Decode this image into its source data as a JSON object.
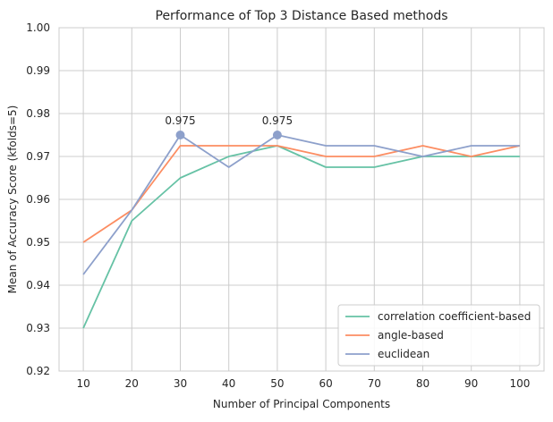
{
  "chart_data": {
    "type": "line",
    "title": "Performance of Top 3 Distance Based methods",
    "xlabel": "Number of Principal Components",
    "ylabel": "Mean of Accuracy Score (kfolds=5)",
    "x": [
      10,
      20,
      30,
      40,
      50,
      60,
      70,
      80,
      90,
      100
    ],
    "xlim": [
      5,
      105
    ],
    "ylim": [
      0.92,
      1.0
    ],
    "xticks": [
      "10",
      "20",
      "30",
      "40",
      "50",
      "60",
      "70",
      "80",
      "90",
      "100"
    ],
    "yticks": [
      "0.92",
      "0.93",
      "0.94",
      "0.95",
      "0.96",
      "0.97",
      "0.98",
      "0.99",
      "1.00"
    ],
    "grid": true,
    "legend_position": "bottom-right",
    "series": [
      {
        "name": "correlation coefficient-based",
        "color": "#66c2a5",
        "values": [
          0.93,
          0.955,
          0.965,
          0.97,
          0.9725,
          0.9675,
          0.9675,
          0.97,
          0.97,
          0.97
        ]
      },
      {
        "name": "angle-based",
        "color": "#fc8d62",
        "values": [
          0.95,
          0.9575,
          0.9725,
          0.9725,
          0.9725,
          0.97,
          0.97,
          0.9725,
          0.97,
          0.9725
        ]
      },
      {
        "name": "euclidean",
        "color": "#8da0cb",
        "values": [
          0.9425,
          0.9575,
          0.975,
          0.9675,
          0.975,
          0.9725,
          0.9725,
          0.97,
          0.9725,
          0.9725
        ]
      }
    ],
    "annotations": [
      {
        "x": 30,
        "y": 0.975,
        "text": "0.975",
        "color": "#8da0cb"
      },
      {
        "x": 50,
        "y": 0.975,
        "text": "0.975",
        "color": "#8da0cb"
      }
    ]
  }
}
